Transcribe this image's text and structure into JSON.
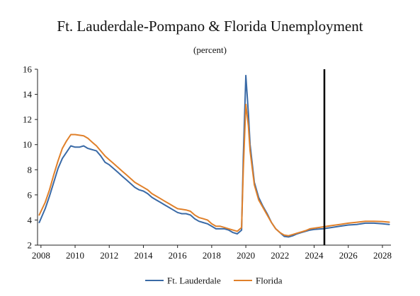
{
  "chart_data": {
    "type": "line",
    "title": "Ft. Lauderdale-Pompano & Florida Unemployment",
    "subtitle": "(percent)",
    "xlabel": "",
    "ylabel": "",
    "xlim": [
      2007.8,
      2028.5
    ],
    "ylim": [
      2,
      16
    ],
    "x_ticks": [
      2008,
      2010,
      2012,
      2014,
      2016,
      2018,
      2020,
      2022,
      2024,
      2026,
      2028
    ],
    "y_ticks": [
      2,
      4,
      6,
      8,
      10,
      12,
      14,
      16
    ],
    "grid": false,
    "legend_position": "bottom",
    "forecast_marker_x": 2024.6,
    "series": [
      {
        "name": "Ft. Lauderdale",
        "color": "#3a6aa6",
        "points": [
          [
            2007.9,
            3.8
          ],
          [
            2008.25,
            4.9
          ],
          [
            2008.5,
            5.9
          ],
          [
            2008.75,
            7.0
          ],
          [
            2009.0,
            8.1
          ],
          [
            2009.25,
            8.9
          ],
          [
            2009.5,
            9.4
          ],
          [
            2009.75,
            9.9
          ],
          [
            2010.0,
            9.8
          ],
          [
            2010.25,
            9.8
          ],
          [
            2010.5,
            9.9
          ],
          [
            2010.75,
            9.7
          ],
          [
            2011.0,
            9.6
          ],
          [
            2011.25,
            9.5
          ],
          [
            2011.5,
            9.1
          ],
          [
            2011.75,
            8.6
          ],
          [
            2012.0,
            8.4
          ],
          [
            2012.25,
            8.1
          ],
          [
            2012.5,
            7.8
          ],
          [
            2012.75,
            7.5
          ],
          [
            2013.0,
            7.2
          ],
          [
            2013.25,
            6.9
          ],
          [
            2013.5,
            6.6
          ],
          [
            2013.75,
            6.4
          ],
          [
            2014.0,
            6.3
          ],
          [
            2014.25,
            6.1
          ],
          [
            2014.5,
            5.8
          ],
          [
            2014.75,
            5.6
          ],
          [
            2015.0,
            5.4
          ],
          [
            2015.25,
            5.2
          ],
          [
            2015.5,
            5.0
          ],
          [
            2015.75,
            4.8
          ],
          [
            2016.0,
            4.6
          ],
          [
            2016.25,
            4.5
          ],
          [
            2016.5,
            4.5
          ],
          [
            2016.75,
            4.4
          ],
          [
            2017.0,
            4.1
          ],
          [
            2017.25,
            3.9
          ],
          [
            2017.5,
            3.8
          ],
          [
            2017.75,
            3.7
          ],
          [
            2018.0,
            3.5
          ],
          [
            2018.25,
            3.3
          ],
          [
            2018.5,
            3.3
          ],
          [
            2018.75,
            3.3
          ],
          [
            2019.0,
            3.2
          ],
          [
            2019.25,
            3.0
          ],
          [
            2019.5,
            2.9
          ],
          [
            2019.75,
            3.2
          ],
          [
            2019.85,
            9.0
          ],
          [
            2020.0,
            15.5
          ],
          [
            2020.15,
            12.5
          ],
          [
            2020.25,
            10.0
          ],
          [
            2020.5,
            7.0
          ],
          [
            2020.75,
            5.8
          ],
          [
            2021.0,
            5.1
          ],
          [
            2021.25,
            4.5
          ],
          [
            2021.5,
            3.8
          ],
          [
            2021.75,
            3.3
          ],
          [
            2022.0,
            3.0
          ],
          [
            2022.25,
            2.7
          ],
          [
            2022.5,
            2.65
          ],
          [
            2022.75,
            2.75
          ],
          [
            2023.0,
            2.9
          ],
          [
            2023.25,
            3.0
          ],
          [
            2023.5,
            3.1
          ],
          [
            2023.75,
            3.2
          ],
          [
            2024.0,
            3.25
          ],
          [
            2024.5,
            3.3
          ],
          [
            2025.0,
            3.4
          ],
          [
            2025.5,
            3.5
          ],
          [
            2026.0,
            3.6
          ],
          [
            2026.5,
            3.65
          ],
          [
            2027.0,
            3.75
          ],
          [
            2027.5,
            3.75
          ],
          [
            2028.0,
            3.7
          ],
          [
            2028.4,
            3.65
          ]
        ]
      },
      {
        "name": "Florida",
        "color": "#e0802a",
        "points": [
          [
            2007.9,
            4.4
          ],
          [
            2008.25,
            5.4
          ],
          [
            2008.5,
            6.4
          ],
          [
            2008.75,
            7.6
          ],
          [
            2009.0,
            8.7
          ],
          [
            2009.25,
            9.7
          ],
          [
            2009.5,
            10.3
          ],
          [
            2009.75,
            10.8
          ],
          [
            2010.0,
            10.8
          ],
          [
            2010.25,
            10.75
          ],
          [
            2010.5,
            10.7
          ],
          [
            2010.75,
            10.5
          ],
          [
            2011.0,
            10.2
          ],
          [
            2011.25,
            9.9
          ],
          [
            2011.5,
            9.5
          ],
          [
            2011.75,
            9.1
          ],
          [
            2012.0,
            8.8
          ],
          [
            2012.25,
            8.5
          ],
          [
            2012.5,
            8.2
          ],
          [
            2012.75,
            7.9
          ],
          [
            2013.0,
            7.6
          ],
          [
            2013.25,
            7.3
          ],
          [
            2013.5,
            7.0
          ],
          [
            2013.75,
            6.8
          ],
          [
            2014.0,
            6.6
          ],
          [
            2014.25,
            6.4
          ],
          [
            2014.5,
            6.1
          ],
          [
            2014.75,
            5.9
          ],
          [
            2015.0,
            5.7
          ],
          [
            2015.25,
            5.5
          ],
          [
            2015.5,
            5.3
          ],
          [
            2015.75,
            5.1
          ],
          [
            2016.0,
            4.9
          ],
          [
            2016.25,
            4.85
          ],
          [
            2016.5,
            4.8
          ],
          [
            2016.75,
            4.7
          ],
          [
            2017.0,
            4.4
          ],
          [
            2017.25,
            4.2
          ],
          [
            2017.5,
            4.1
          ],
          [
            2017.75,
            4.0
          ],
          [
            2018.0,
            3.7
          ],
          [
            2018.25,
            3.5
          ],
          [
            2018.5,
            3.5
          ],
          [
            2018.75,
            3.4
          ],
          [
            2019.0,
            3.3
          ],
          [
            2019.25,
            3.2
          ],
          [
            2019.5,
            3.1
          ],
          [
            2019.75,
            3.4
          ],
          [
            2019.85,
            8.0
          ],
          [
            2020.0,
            13.2
          ],
          [
            2020.15,
            11.5
          ],
          [
            2020.25,
            9.5
          ],
          [
            2020.5,
            6.8
          ],
          [
            2020.75,
            5.6
          ],
          [
            2021.0,
            5.0
          ],
          [
            2021.25,
            4.4
          ],
          [
            2021.5,
            3.8
          ],
          [
            2021.75,
            3.3
          ],
          [
            2022.0,
            3.0
          ],
          [
            2022.25,
            2.8
          ],
          [
            2022.5,
            2.75
          ],
          [
            2022.75,
            2.85
          ],
          [
            2023.0,
            2.95
          ],
          [
            2023.25,
            3.05
          ],
          [
            2023.5,
            3.15
          ],
          [
            2023.75,
            3.3
          ],
          [
            2024.0,
            3.35
          ],
          [
            2024.5,
            3.45
          ],
          [
            2025.0,
            3.55
          ],
          [
            2025.5,
            3.65
          ],
          [
            2026.0,
            3.75
          ],
          [
            2026.5,
            3.82
          ],
          [
            2027.0,
            3.9
          ],
          [
            2027.5,
            3.9
          ],
          [
            2028.0,
            3.88
          ],
          [
            2028.4,
            3.83
          ]
        ]
      }
    ]
  }
}
